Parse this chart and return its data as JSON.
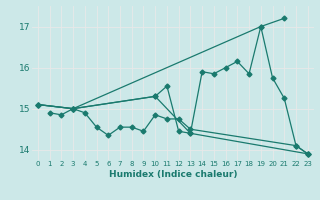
{
  "xlabel": "Humidex (Indice chaleur)",
  "ylabel": "",
  "background_color": "#cce8e8",
  "grid_color": "#f0f0f0",
  "line_color": "#1a7a6e",
  "xlim": [
    -0.5,
    23.5
  ],
  "ylim": [
    13.75,
    17.5
  ],
  "yticks": [
    14,
    15,
    16,
    17
  ],
  "xticks": [
    0,
    1,
    2,
    3,
    4,
    5,
    6,
    7,
    8,
    9,
    10,
    11,
    12,
    13,
    14,
    15,
    16,
    17,
    18,
    19,
    20,
    21,
    22,
    23
  ],
  "line1_x": [
    0,
    3,
    19,
    21
  ],
  "line1_y": [
    15.1,
    15.0,
    17.0,
    17.2
  ],
  "line2_x": [
    1,
    2,
    3,
    4,
    5,
    6,
    7,
    8,
    9,
    10,
    11,
    12,
    13,
    22,
    23
  ],
  "line2_y": [
    14.9,
    14.85,
    15.0,
    14.9,
    14.55,
    14.35,
    14.55,
    14.55,
    14.45,
    14.85,
    14.75,
    14.75,
    14.5,
    14.1,
    13.9
  ],
  "line3_x": [
    0,
    3,
    10,
    11,
    12,
    13,
    14,
    15,
    16,
    17,
    18,
    19,
    20,
    21,
    22,
    23
  ],
  "line3_y": [
    15.1,
    15.0,
    15.3,
    15.55,
    14.45,
    14.4,
    15.9,
    15.85,
    16.0,
    16.15,
    15.85,
    17.0,
    15.75,
    15.25,
    14.1,
    13.9
  ],
  "line4_x": [
    0,
    3,
    10,
    13,
    23
  ],
  "line4_y": [
    15.1,
    15.0,
    15.3,
    14.4,
    13.9
  ]
}
